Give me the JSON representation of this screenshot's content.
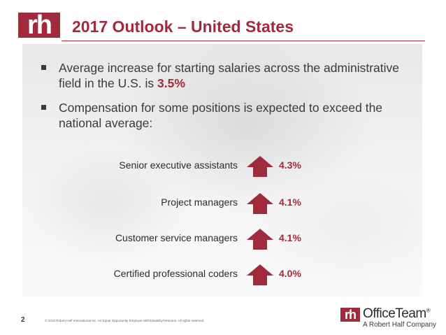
{
  "header": {
    "logo_text": "rh",
    "title": "2017 Outlook – United States"
  },
  "bullets": [
    {
      "text_before": "Average increase for starting salaries across the administrative field in the U.S. is ",
      "highlight": "3.5%"
    },
    {
      "text": "Compensation for some positions is expected to exceed the national average:"
    }
  ],
  "stats": [
    {
      "label": "Senior executive assistants",
      "value": "4.3%"
    },
    {
      "label": "Project managers",
      "value": "4.1%"
    },
    {
      "label": "Customer service managers",
      "value": "4.1%"
    },
    {
      "label": "Certified professional coders",
      "value": "4.0%"
    }
  ],
  "footer": {
    "page_number": "2",
    "legal": "© 2016 Robert Half International Inc. An Equal Opportunity Employer M/F/Disability/Veterans. All rights reserved.",
    "brand_logo": "rh",
    "brand_name": "OfficeTeam",
    "brand_registered": "®",
    "brand_tagline": "A Robert Half Company"
  },
  "colors": {
    "accent": "#a02b3d",
    "text": "#3a3a3a"
  },
  "icons": {
    "stat_icon": "up-arrow-icon",
    "bullet_icon": "square-bullet-icon"
  }
}
